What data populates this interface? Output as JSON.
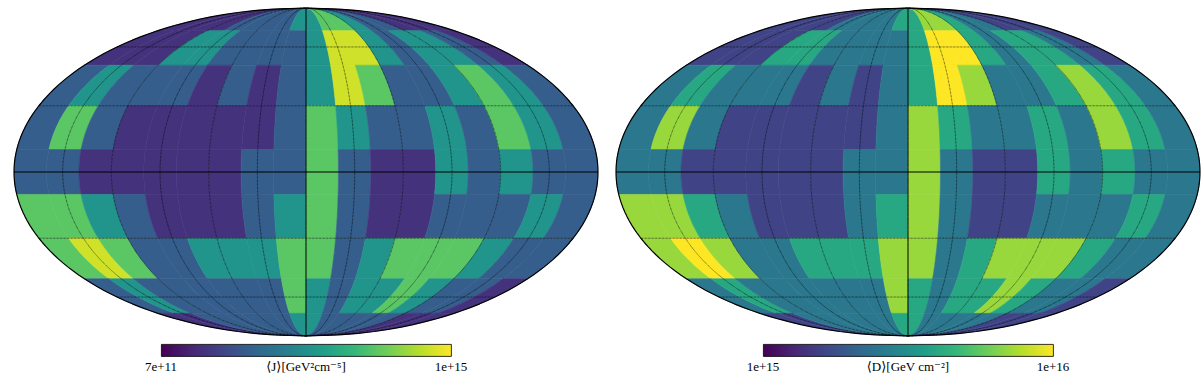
{
  "chart_data": [
    {
      "type": "heatmap",
      "log": true,
      "grid": true,
      "tick_labels": false,
      "xlim": [
        -180,
        180
      ],
      "ylim": [
        -90,
        90
      ],
      "xticks": [
        -180,
        -150,
        -120,
        -90,
        -60,
        -30,
        0,
        30,
        60,
        90,
        120,
        150,
        180
      ],
      "yticks": [
        -90,
        -60,
        -30,
        0,
        30,
        60,
        90
      ],
      "x": [
        -170,
        -150,
        -130,
        -110,
        -90,
        -70,
        -50,
        -30,
        -10,
        10,
        30,
        50,
        70,
        90,
        110,
        130,
        150,
        170
      ],
      "y": [
        80,
        60,
        40,
        20,
        0,
        -20,
        -40,
        -60,
        -80
      ],
      "cells": [
        [
          2000000000000.0,
          2000000000000.0,
          2000000000000.0,
          2000000000000.0,
          6000000000000.0,
          6000000000000.0,
          6000000000000.0,
          6000000000000.0,
          30000000000000.0,
          30000000000000.0,
          150000000000000.0,
          150000000000000.0,
          30000000000000.0,
          6000000000000.0,
          6000000000000.0,
          2000000000000.0,
          2000000000000.0,
          2000000000000.0
        ],
        [
          2000000000000.0,
          2000000000000.0,
          2000000000000.0,
          30000000000000.0,
          30000000000000.0,
          6000000000000.0,
          6000000000000.0,
          6000000000000.0,
          6000000000000.0,
          30000000000000.0,
          600000000000000.0,
          600000000000000.0,
          30000000000000.0,
          6000000000000.0,
          30000000000000.0,
          30000000000000.0,
          6000000000000.0,
          2000000000000.0
        ],
        [
          6000000000000.0,
          30000000000000.0,
          6000000000000.0,
          6000000000000.0,
          6000000000000.0,
          2000000000000.0,
          6000000000000.0,
          2000000000000.0,
          6000000000000.0,
          30000000000000.0,
          600000000000000.0,
          150000000000000.0,
          6000000000000.0,
          6000000000000.0,
          30000000000000.0,
          150000000000000.0,
          30000000000000.0,
          6000000000000.0
        ],
        [
          6000000000000.0,
          150000000000000.0,
          6000000000000.0,
          2000000000000.0,
          2000000000000.0,
          2000000000000.0,
          2000000000000.0,
          2000000000000.0,
          6000000000000.0,
          150000000000000.0,
          30000000000000.0,
          6000000000000.0,
          6000000000000.0,
          30000000000000.0,
          6000000000000.0,
          150000000000000.0,
          30000000000000.0,
          6000000000000.0
        ],
        [
          6000000000000.0,
          6000000000000.0,
          2000000000000.0,
          2000000000000.0,
          2000000000000.0,
          2000000000000.0,
          2000000000000.0,
          6000000000000.0,
          6000000000000.0,
          150000000000000.0,
          6000000000000.0,
          2000000000000.0,
          2000000000000.0,
          30000000000000.0,
          6000000000000.0,
          30000000000000.0,
          6000000000000.0,
          6000000000000.0
        ],
        [
          150000000000000.0,
          150000000000000.0,
          30000000000000.0,
          6000000000000.0,
          2000000000000.0,
          2000000000000.0,
          2000000000000.0,
          6000000000000.0,
          30000000000000.0,
          150000000000000.0,
          6000000000000.0,
          2000000000000.0,
          2000000000000.0,
          6000000000000.0,
          6000000000000.0,
          6000000000000.0,
          30000000000000.0,
          6000000000000.0
        ],
        [
          150000000000000.0,
          600000000000000.0,
          150000000000000.0,
          6000000000000.0,
          6000000000000.0,
          30000000000000.0,
          30000000000000.0,
          30000000000000.0,
          150000000000000.0,
          150000000000000.0,
          6000000000000.0,
          30000000000000.0,
          150000000000000.0,
          150000000000000.0,
          150000000000000.0,
          30000000000000.0,
          6000000000000.0,
          6000000000000.0
        ],
        [
          6000000000000.0,
          30000000000000.0,
          6000000000000.0,
          6000000000000.0,
          6000000000000.0,
          6000000000000.0,
          6000000000000.0,
          6000000000000.0,
          150000000000000.0,
          30000000000000.0,
          6000000000000.0,
          30000000000000.0,
          30000000000000.0,
          150000000000000.0,
          30000000000000.0,
          6000000000000.0,
          6000000000000.0,
          2000000000000.0
        ],
        [
          2000000000000.0,
          2000000000000.0,
          6000000000000.0,
          6000000000000.0,
          6000000000000.0,
          6000000000000.0,
          6000000000000.0,
          6000000000000.0,
          30000000000000.0,
          30000000000000.0,
          6000000000000.0,
          6000000000000.0,
          6000000000000.0,
          6000000000000.0,
          6000000000000.0,
          2000000000000.0,
          2000000000000.0,
          2000000000000.0
        ]
      ],
      "colorbar": {
        "label": "⟨J⟩[GeV²cm⁻⁵]",
        "range": [
          700000000000.0,
          1000000000000000.0
        ],
        "ticks": [
          {
            "value": 700000000000.0,
            "label": "7e+11"
          },
          {
            "value": 1000000000000000.0,
            "label": "1e+15"
          }
        ]
      }
    },
    {
      "type": "heatmap",
      "log": true,
      "grid": true,
      "tick_labels": false,
      "xlim": [
        -180,
        180
      ],
      "ylim": [
        -90,
        90
      ],
      "xticks": [
        -180,
        -150,
        -120,
        -90,
        -60,
        -30,
        0,
        30,
        60,
        90,
        120,
        150,
        180
      ],
      "yticks": [
        -90,
        -60,
        -30,
        0,
        30,
        60,
        90
      ],
      "x": [
        -170,
        -150,
        -130,
        -110,
        -90,
        -70,
        -50,
        -30,
        -10,
        10,
        30,
        50,
        70,
        90,
        110,
        130,
        150,
        170
      ],
      "y": [
        80,
        60,
        40,
        20,
        0,
        -20,
        -40,
        -60,
        -80
      ],
      "cells": [
        [
          1600000000000000.0,
          1600000000000000.0,
          1600000000000000.0,
          1600000000000000.0,
          2500000000000000.0,
          2500000000000000.0,
          2500000000000000.0,
          2500000000000000.0,
          4000000000000000.0,
          4000000000000000.0,
          7000000000000000.0,
          7000000000000000.0,
          4000000000000000.0,
          2500000000000000.0,
          2500000000000000.0,
          1600000000000000.0,
          1600000000000000.0,
          1600000000000000.0
        ],
        [
          1600000000000000.0,
          1600000000000000.0,
          1600000000000000.0,
          4000000000000000.0,
          4000000000000000.0,
          2500000000000000.0,
          2500000000000000.0,
          2500000000000000.0,
          2500000000000000.0,
          4000000000000000.0,
          1e+16,
          1e+16,
          4000000000000000.0,
          2500000000000000.0,
          4000000000000000.0,
          4000000000000000.0,
          2500000000000000.0,
          1600000000000000.0
        ],
        [
          2500000000000000.0,
          4000000000000000.0,
          2500000000000000.0,
          2500000000000000.0,
          2500000000000000.0,
          1600000000000000.0,
          2500000000000000.0,
          1600000000000000.0,
          2500000000000000.0,
          4000000000000000.0,
          1e+16,
          7000000000000000.0,
          2500000000000000.0,
          2500000000000000.0,
          4000000000000000.0,
          7000000000000000.0,
          4000000000000000.0,
          2500000000000000.0
        ],
        [
          2500000000000000.0,
          7000000000000000.0,
          2500000000000000.0,
          1600000000000000.0,
          1600000000000000.0,
          1600000000000000.0,
          1600000000000000.0,
          1600000000000000.0,
          2500000000000000.0,
          7000000000000000.0,
          4000000000000000.0,
          2500000000000000.0,
          2500000000000000.0,
          4000000000000000.0,
          2500000000000000.0,
          7000000000000000.0,
          4000000000000000.0,
          2500000000000000.0
        ],
        [
          2500000000000000.0,
          2500000000000000.0,
          1600000000000000.0,
          1600000000000000.0,
          1600000000000000.0,
          1600000000000000.0,
          1600000000000000.0,
          2500000000000000.0,
          2500000000000000.0,
          7000000000000000.0,
          2500000000000000.0,
          1600000000000000.0,
          1600000000000000.0,
          4000000000000000.0,
          2500000000000000.0,
          4000000000000000.0,
          2500000000000000.0,
          2500000000000000.0
        ],
        [
          7000000000000000.0,
          7000000000000000.0,
          4000000000000000.0,
          2500000000000000.0,
          1600000000000000.0,
          1600000000000000.0,
          1600000000000000.0,
          2500000000000000.0,
          4000000000000000.0,
          7000000000000000.0,
          2500000000000000.0,
          1600000000000000.0,
          1600000000000000.0,
          2500000000000000.0,
          2500000000000000.0,
          2500000000000000.0,
          4000000000000000.0,
          2500000000000000.0
        ],
        [
          7000000000000000.0,
          1e+16,
          7000000000000000.0,
          2500000000000000.0,
          2500000000000000.0,
          4000000000000000.0,
          4000000000000000.0,
          4000000000000000.0,
          7000000000000000.0,
          7000000000000000.0,
          2500000000000000.0,
          4000000000000000.0,
          7000000000000000.0,
          7000000000000000.0,
          7000000000000000.0,
          4000000000000000.0,
          2500000000000000.0,
          2500000000000000.0
        ],
        [
          2500000000000000.0,
          4000000000000000.0,
          2500000000000000.0,
          2500000000000000.0,
          2500000000000000.0,
          2500000000000000.0,
          2500000000000000.0,
          2500000000000000.0,
          7000000000000000.0,
          4000000000000000.0,
          2500000000000000.0,
          4000000000000000.0,
          4000000000000000.0,
          7000000000000000.0,
          4000000000000000.0,
          2500000000000000.0,
          2500000000000000.0,
          1600000000000000.0
        ],
        [
          1600000000000000.0,
          1600000000000000.0,
          2500000000000000.0,
          2500000000000000.0,
          2500000000000000.0,
          2500000000000000.0,
          2500000000000000.0,
          2500000000000000.0,
          4000000000000000.0,
          4000000000000000.0,
          2500000000000000.0,
          2500000000000000.0,
          2500000000000000.0,
          2500000000000000.0,
          2500000000000000.0,
          1600000000000000.0,
          1600000000000000.0,
          1600000000000000.0
        ]
      ],
      "colorbar": {
        "label": "⟨D⟩[GeV cm⁻²]",
        "range": [
          1000000000000000.0,
          1e+16
        ],
        "ticks": [
          {
            "value": 1000000000000000.0,
            "label": "1e+15"
          },
          {
            "value": 1e+16,
            "label": "1e+16"
          }
        ]
      }
    }
  ]
}
